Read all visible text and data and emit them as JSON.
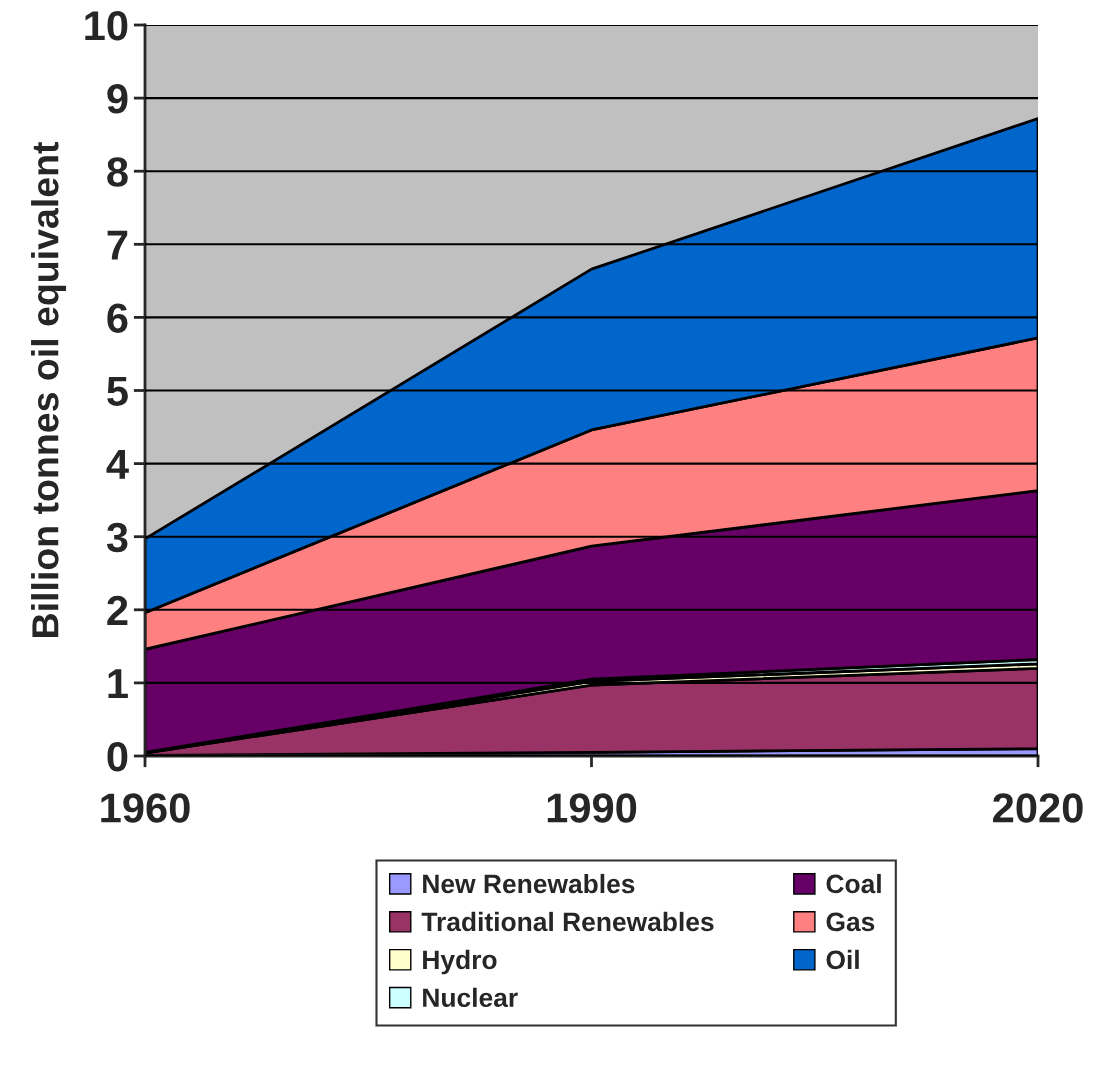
{
  "chart_data": {
    "type": "area",
    "stacked": true,
    "ylabel": "Billion tonnes oil equivalent",
    "x": [
      1960,
      1990,
      2020
    ],
    "xlim": [
      1960,
      2020
    ],
    "xticks": [
      1960,
      1990,
      2020
    ],
    "ylim": [
      0,
      10
    ],
    "yticks": [
      0,
      1,
      2,
      3,
      4,
      5,
      6,
      7,
      8,
      9,
      10
    ],
    "grid": "y",
    "legend": "bottom",
    "series": [
      {
        "name": "New Renewables",
        "color": "#9999ff",
        "values": [
          0.01,
          0.05,
          0.1
        ]
      },
      {
        "name": "Traditional Renewables",
        "color": "#993366",
        "values": [
          0.03,
          0.92,
          1.1
        ]
      },
      {
        "name": "Hydro",
        "color": "#ffffcc",
        "values": [
          0.01,
          0.05,
          0.06
        ]
      },
      {
        "name": "Nuclear",
        "color": "#ccffff",
        "values": [
          0.0,
          0.03,
          0.06
        ]
      },
      {
        "name": "Coal",
        "color": "#660066",
        "values": [
          1.41,
          1.82,
          2.31
        ]
      },
      {
        "name": "Gas",
        "color": "#ff8080",
        "values": [
          0.5,
          1.59,
          2.09
        ]
      },
      {
        "name": "Oil",
        "color": "#0066cc",
        "values": [
          1.01,
          2.2,
          3.0
        ]
      }
    ]
  }
}
